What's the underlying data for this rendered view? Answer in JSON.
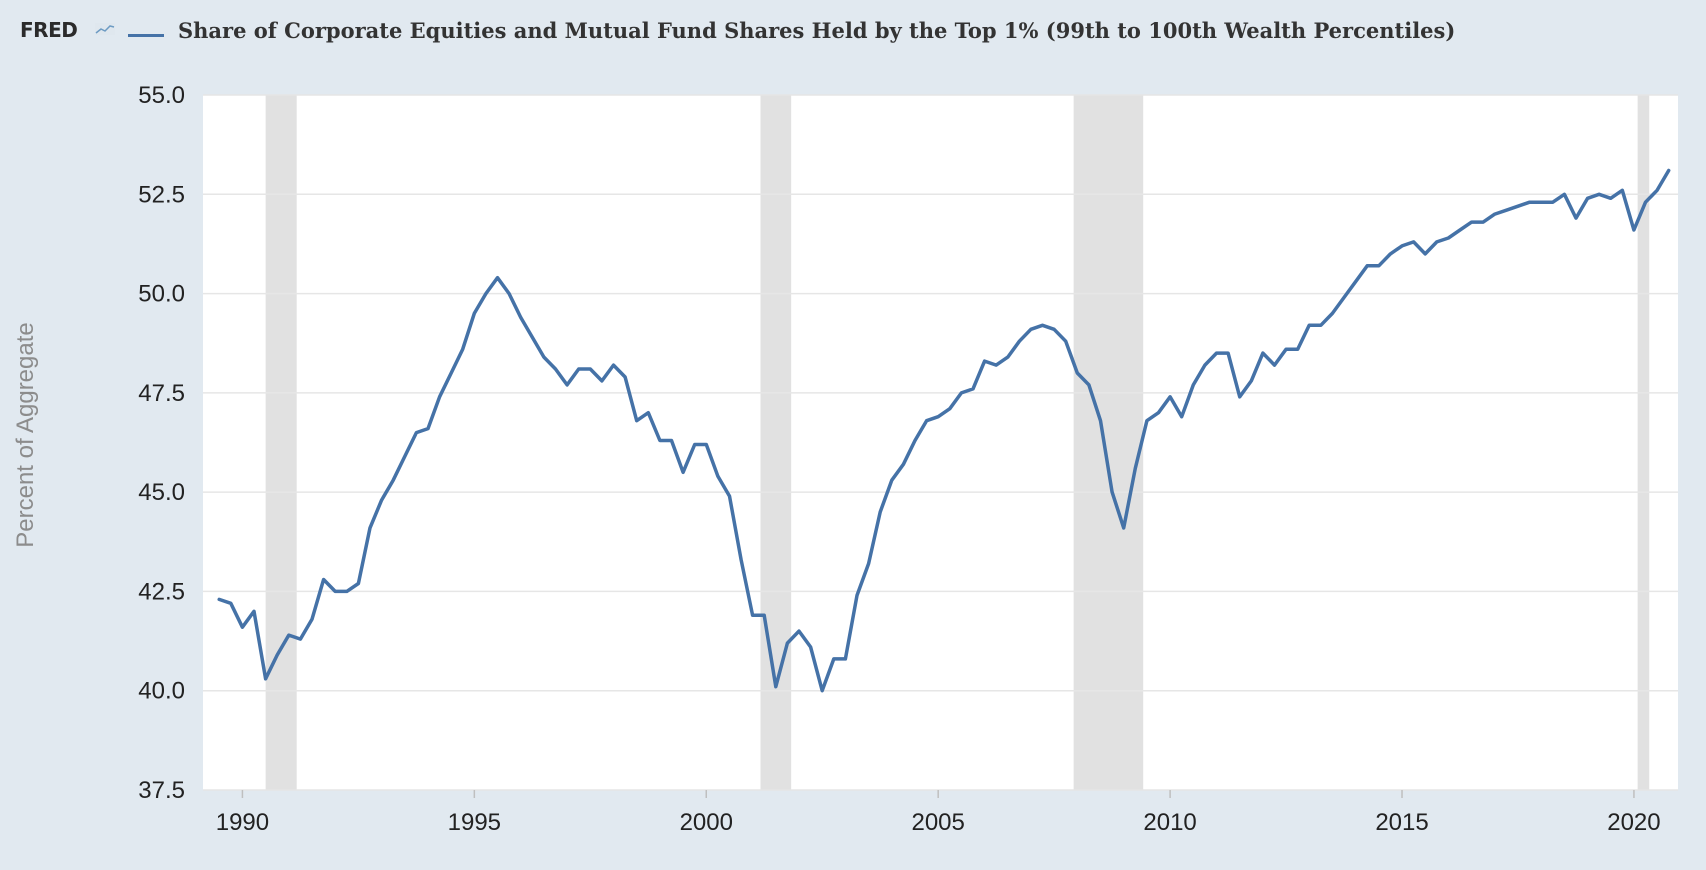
{
  "header": {
    "logo_text": "FRED",
    "logo_icon": "fred-graph-icon",
    "title": "Share of Corporate Equities and Mutual Fund Shares Held by the Top 1% (99th to 100th Wealth Percentiles)"
  },
  "colors": {
    "series": "#4572a7",
    "recession": "#e1e1e1",
    "grid": "#e6e6e6",
    "plot_bg": "#ffffff",
    "page_bg": "#e1e9f0"
  },
  "chart_data": {
    "type": "line",
    "title": "Share of Corporate Equities and Mutual Fund Shares Held by the Top 1% (99th to 100th Wealth Percentiles)",
    "xlabel": "",
    "ylabel": "Percent of Aggregate",
    "xlim": [
      1989.15,
      2020.95
    ],
    "ylim": [
      37.5,
      55.0
    ],
    "x_ticks": [
      1990,
      1995,
      2000,
      2005,
      2010,
      2015,
      2020
    ],
    "x_tick_labels": [
      "1990",
      "1995",
      "2000",
      "2005",
      "2010",
      "2015",
      "2020"
    ],
    "y_ticks": [
      37.5,
      40.0,
      42.5,
      45.0,
      47.5,
      50.0,
      52.5,
      55.0
    ],
    "y_tick_labels": [
      "37.5",
      "40.0",
      "42.5",
      "45.0",
      "47.5",
      "50.0",
      "52.5",
      "55.0"
    ],
    "grid": "horizontal",
    "recessions": [
      [
        1990.5,
        1991.17
      ],
      [
        2001.17,
        2001.83
      ],
      [
        2007.92,
        2009.42
      ],
      [
        2020.08,
        2020.33
      ]
    ],
    "series": [
      {
        "name": "Share of Corporate Equities and Mutual Fund Shares Held by the Top 1% (99th to 100th Wealth Percentiles)",
        "x": [
          1989.5,
          1989.75,
          1990.0,
          1990.25,
          1990.5,
          1990.75,
          1991.0,
          1991.25,
          1991.5,
          1991.75,
          1992.0,
          1992.25,
          1992.5,
          1992.75,
          1993.0,
          1993.25,
          1993.5,
          1993.75,
          1994.0,
          1994.25,
          1994.5,
          1994.75,
          1995.0,
          1995.25,
          1995.5,
          1995.75,
          1996.0,
          1996.25,
          1996.5,
          1996.75,
          1997.0,
          1997.25,
          1997.5,
          1997.75,
          1998.0,
          1998.25,
          1998.5,
          1998.75,
          1999.0,
          1999.25,
          1999.5,
          1999.75,
          2000.0,
          2000.25,
          2000.5,
          2000.75,
          2001.0,
          2001.25,
          2001.5,
          2001.75,
          2002.0,
          2002.25,
          2002.5,
          2002.75,
          2003.0,
          2003.25,
          2003.5,
          2003.75,
          2004.0,
          2004.25,
          2004.5,
          2004.75,
          2005.0,
          2005.25,
          2005.5,
          2005.75,
          2006.0,
          2006.25,
          2006.5,
          2006.75,
          2007.0,
          2007.25,
          2007.5,
          2007.75,
          2008.0,
          2008.25,
          2008.5,
          2008.75,
          2009.0,
          2009.25,
          2009.5,
          2009.75,
          2010.0,
          2010.25,
          2010.5,
          2010.75,
          2011.0,
          2011.25,
          2011.5,
          2011.75,
          2012.0,
          2012.25,
          2012.5,
          2012.75,
          2013.0,
          2013.25,
          2013.5,
          2013.75,
          2014.0,
          2014.25,
          2014.5,
          2014.75,
          2015.0,
          2015.25,
          2015.5,
          2015.75,
          2016.0,
          2016.25,
          2016.5,
          2016.75,
          2017.0,
          2017.25,
          2017.5,
          2017.75,
          2018.0,
          2018.25,
          2018.5,
          2018.75,
          2019.0,
          2019.25,
          2019.5,
          2019.75,
          2020.0,
          2020.25,
          2020.5,
          2020.75
        ],
        "values": [
          42.3,
          42.2,
          41.6,
          42.0,
          40.3,
          40.9,
          41.4,
          41.3,
          41.8,
          42.8,
          42.5,
          42.5,
          42.7,
          44.1,
          44.8,
          45.3,
          45.9,
          46.5,
          46.6,
          47.4,
          48.0,
          48.6,
          49.5,
          50.0,
          50.4,
          50.0,
          49.4,
          48.9,
          48.4,
          48.1,
          47.7,
          48.1,
          48.1,
          47.8,
          48.2,
          47.9,
          46.8,
          47.0,
          46.3,
          46.3,
          45.5,
          46.2,
          46.2,
          45.4,
          44.9,
          43.3,
          41.9,
          41.9,
          40.1,
          41.2,
          41.5,
          41.1,
          40.0,
          40.8,
          40.8,
          42.4,
          43.2,
          44.5,
          45.3,
          45.7,
          46.3,
          46.8,
          46.9,
          47.1,
          47.5,
          47.6,
          48.3,
          48.2,
          48.4,
          48.8,
          49.1,
          49.2,
          49.1,
          48.8,
          48.0,
          47.7,
          46.8,
          45.0,
          44.1,
          45.6,
          46.8,
          47.0,
          47.4,
          46.9,
          47.7,
          48.2,
          48.5,
          48.5,
          47.4,
          47.8,
          48.5,
          48.2,
          48.6,
          48.6,
          49.2,
          49.2,
          49.5,
          49.9,
          50.3,
          50.7,
          50.7,
          51.0,
          51.2,
          51.3,
          51.0,
          51.3,
          51.4,
          51.6,
          51.8,
          51.8,
          52.0,
          52.1,
          52.2,
          52.3,
          52.3,
          52.3,
          52.5,
          51.9,
          52.4,
          52.5,
          52.4,
          52.6,
          51.6,
          52.3,
          52.6,
          53.1
        ]
      }
    ]
  }
}
